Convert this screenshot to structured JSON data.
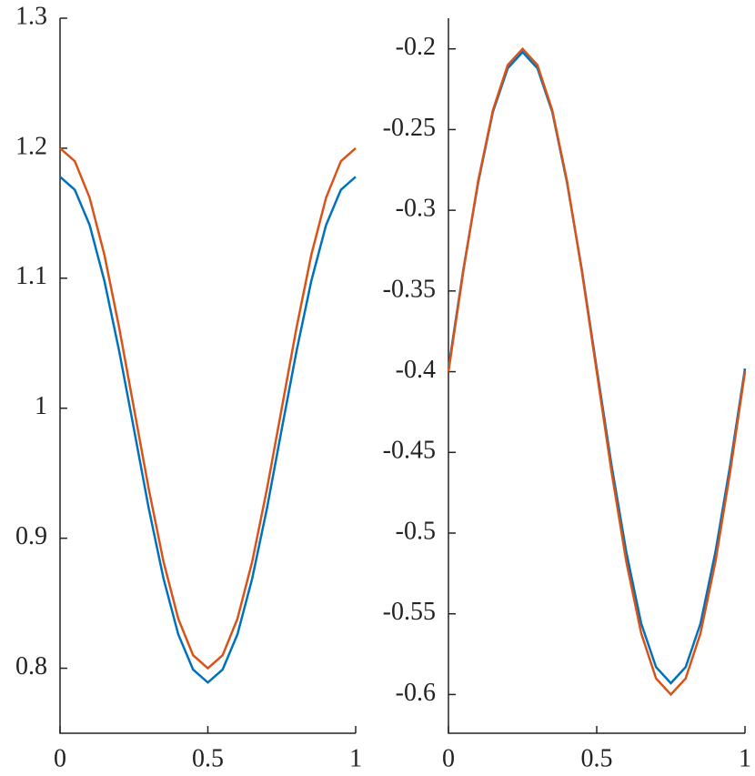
{
  "chart_data": [
    {
      "type": "line",
      "xlim": [
        0,
        1
      ],
      "xticks": [
        0,
        0.5,
        1
      ],
      "ylim": [
        0.75,
        1.3
      ],
      "yticks": [
        0.8,
        0.9,
        1,
        1.1,
        1.2,
        1.3
      ],
      "x": [
        0,
        0.05,
        0.1,
        0.15,
        0.2,
        0.25,
        0.3,
        0.35,
        0.4,
        0.45,
        0.5,
        0.55,
        0.6,
        0.65,
        0.7,
        0.75,
        0.8,
        0.85,
        0.9,
        0.95,
        1
      ],
      "series": [
        {
          "color": "#0072bd",
          "values": [
            1.178,
            1.168,
            1.141,
            1.098,
            1.044,
            0.984,
            0.923,
            0.869,
            0.826,
            0.799,
            0.789,
            0.799,
            0.826,
            0.869,
            0.923,
            0.984,
            1.044,
            1.098,
            1.141,
            1.168,
            1.178
          ]
        },
        {
          "color": "#d95319",
          "values": [
            1.2,
            1.19,
            1.162,
            1.118,
            1.062,
            1.0,
            0.938,
            0.882,
            0.838,
            0.81,
            0.8,
            0.81,
            0.838,
            0.882,
            0.938,
            1.0,
            1.062,
            1.118,
            1.162,
            1.19,
            1.2
          ]
        }
      ]
    },
    {
      "type": "line",
      "xlim": [
        0,
        1
      ],
      "xticks": [
        0,
        0.5,
        1
      ],
      "ylim": [
        -0.624,
        -0.181
      ],
      "yticks": [
        -0.6,
        -0.55,
        -0.5,
        -0.45,
        -0.4,
        -0.35,
        -0.3,
        -0.25,
        -0.2
      ],
      "x": [
        0,
        0.05,
        0.1,
        0.15,
        0.2,
        0.25,
        0.3,
        0.35,
        0.4,
        0.45,
        0.5,
        0.55,
        0.6,
        0.65,
        0.7,
        0.75,
        0.8,
        0.85,
        0.9,
        0.95,
        1
      ],
      "series": [
        {
          "color": "#0072bd",
          "values": [
            -0.398,
            -0.337,
            -0.283,
            -0.239,
            -0.212,
            -0.202,
            -0.212,
            -0.239,
            -0.283,
            -0.337,
            -0.398,
            -0.458,
            -0.512,
            -0.556,
            -0.583,
            -0.593,
            -0.583,
            -0.556,
            -0.512,
            -0.458,
            -0.398
          ]
        },
        {
          "color": "#d95319",
          "values": [
            -0.4,
            -0.338,
            -0.282,
            -0.238,
            -0.21,
            -0.2,
            -0.21,
            -0.238,
            -0.282,
            -0.338,
            -0.4,
            -0.462,
            -0.518,
            -0.562,
            -0.59,
            -0.6,
            -0.59,
            -0.562,
            -0.518,
            -0.462,
            -0.4
          ]
        }
      ]
    }
  ]
}
